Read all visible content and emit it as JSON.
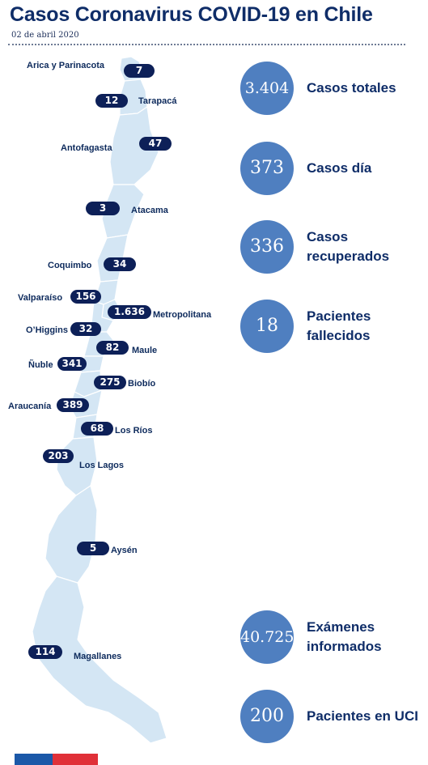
{
  "header": {
    "title": "Casos Coronavirus COVID-19 en Chile",
    "date": "02 de abril 2020"
  },
  "colors": {
    "badge": "#0d2058",
    "circle": "#4f7fc0",
    "map_fill": "#d4e6f4",
    "map_stroke": "#ffffff",
    "text": "#0f2d68",
    "flag_blue": "#1b58a8",
    "flag_red": "#e03038"
  },
  "chart_data": {
    "type": "table",
    "regions": [
      {
        "name": "Arica y Parinacota",
        "value": "7"
      },
      {
        "name": "Tarapacá",
        "value": "12"
      },
      {
        "name": "Antofagasta",
        "value": "47"
      },
      {
        "name": "Atacama",
        "value": "3"
      },
      {
        "name": "Coquimbo",
        "value": "34"
      },
      {
        "name": "Valparaíso",
        "value": "156"
      },
      {
        "name": "Metropolitana",
        "value": "1.636"
      },
      {
        "name": "O’Higgins",
        "value": "32"
      },
      {
        "name": "Maule",
        "value": "82"
      },
      {
        "name": "Ñuble",
        "value": "341"
      },
      {
        "name": "Biobío",
        "value": "275"
      },
      {
        "name": "Araucanía",
        "value": "389"
      },
      {
        "name": "Los Ríos",
        "value": "68"
      },
      {
        "name": "Los Lagos",
        "value": "203"
      },
      {
        "name": "Aysén",
        "value": "5"
      },
      {
        "name": "Magallanes",
        "value": "114"
      }
    ],
    "stats": [
      {
        "value": "3.404",
        "label": "Casos totales"
      },
      {
        "value": "373",
        "label": "Casos día"
      },
      {
        "value": "336",
        "label": "Casos recuperados"
      },
      {
        "value": "18",
        "label": "Pacientes fallecidos"
      },
      {
        "value": "40.725",
        "label": "Exámenes informados"
      },
      {
        "value": "200",
        "label": "Pacientes en UCI"
      }
    ]
  }
}
